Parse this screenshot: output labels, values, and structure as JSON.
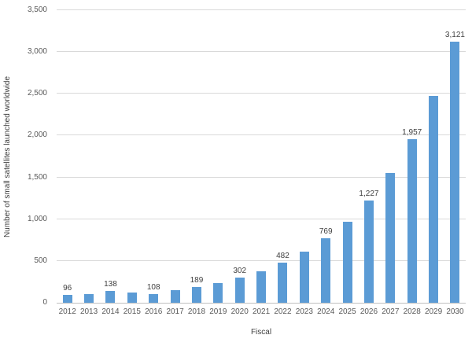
{
  "chart_data": {
    "type": "bar",
    "title": "",
    "xlabel": "Fiscal",
    "ylabel": "Number of small satellites launched worldwide",
    "categories": [
      "2012",
      "2013",
      "2014",
      "2015",
      "2016",
      "2017",
      "2018",
      "2019",
      "2020",
      "2021",
      "2022",
      "2023",
      "2024",
      "2025",
      "2026",
      "2027",
      "2028",
      "2029",
      "2030"
    ],
    "values": [
      96,
      107,
      138,
      122,
      108,
      150,
      189,
      237,
      302,
      380,
      482,
      608,
      769,
      965,
      1227,
      1550,
      1957,
      2470,
      3121
    ],
    "bar_labels": [
      "96",
      "",
      "138",
      "",
      "108",
      "",
      "189",
      "",
      "302",
      "",
      "482",
      "",
      "769",
      "",
      "1,227",
      "",
      "1,957",
      "",
      "3,121"
    ],
    "ylim": [
      0,
      3500
    ],
    "ytick_interval": 500,
    "yticks": [
      "0",
      "500",
      "1,000",
      "1,500",
      "2,000",
      "2,500",
      "3,000",
      "3,500"
    ],
    "grid": "horizontal-only",
    "legend": "none",
    "bar_color": "#5B9BD5",
    "gridline_color": "#D9D9D9",
    "axis_line_color": "#BFBFBF",
    "tick_label_color": "#595959",
    "data_label_color": "#404040",
    "axis_title_color": "#404040",
    "background_color": "#FFFFFF"
  }
}
